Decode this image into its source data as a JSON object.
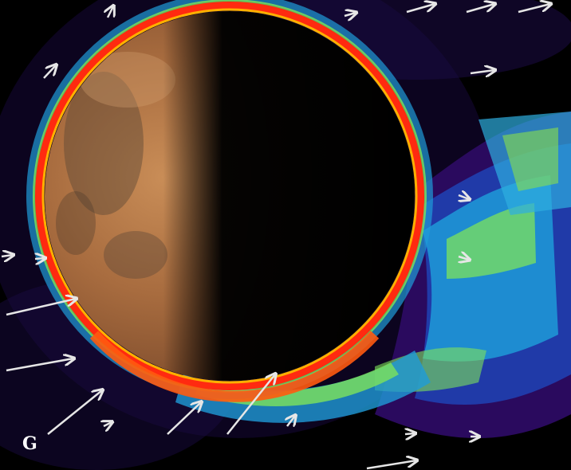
{
  "panel": {
    "label": "G"
  },
  "scene": {
    "subject": "planet-mars",
    "colors": {
      "background": "#000000",
      "plume_low": "#2a0a5e",
      "plume_mid": "#1f9bd8",
      "plume_high": "#7ee35a",
      "ring_outer": "#ff2a10",
      "ring_mid": "#ffb000",
      "surface": "#b87a48",
      "arrows": "#e6e6e6"
    }
  }
}
